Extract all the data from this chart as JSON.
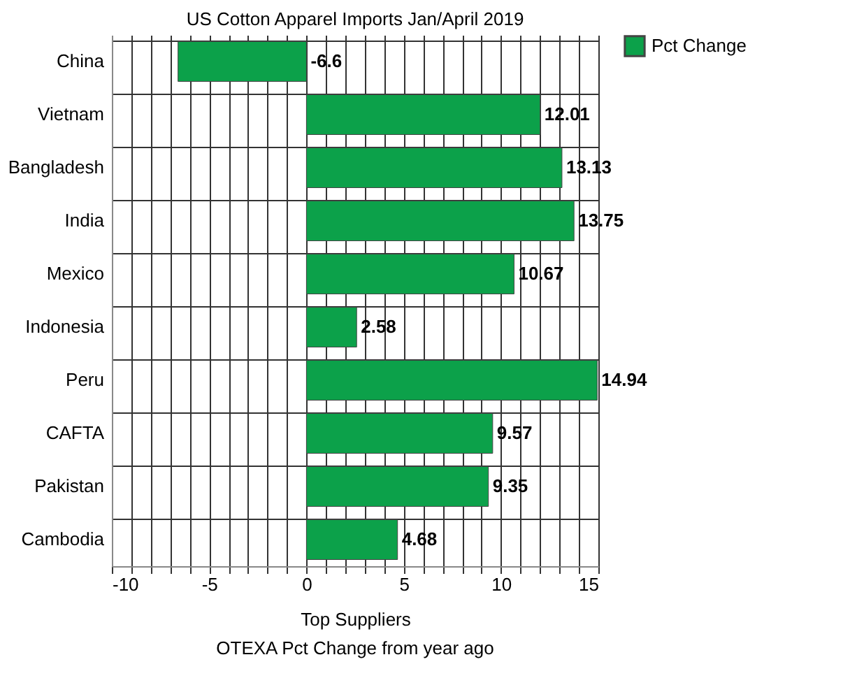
{
  "chart_data": {
    "type": "bar",
    "orientation": "horizontal",
    "title": "US Cotton Apparel Imports Jan/April 2019",
    "xlabel": "Top Suppliers",
    "categories": [
      "China",
      "Vietnam",
      "Bangladesh",
      "India",
      "Mexico",
      "Indonesia",
      "Peru",
      "CAFTA",
      "Pakistan",
      "Cambodia"
    ],
    "series": [
      {
        "name": "Pct Change",
        "color": "#0ca14a",
        "values": [
          -6.6,
          12.01,
          13.13,
          13.75,
          10.67,
          2.58,
          14.94,
          9.57,
          9.35,
          4.68
        ]
      }
    ],
    "data_labels": true,
    "xlim": [
      -10,
      15
    ],
    "xticks": [
      -10,
      {
        "value": -9,
        "label": null
      },
      {
        "value": -8,
        "label": null
      },
      {
        "value": -7,
        "label": null
      },
      {
        "value": -6,
        "label": null
      },
      -5,
      {
        "value": -4,
        "label": null
      },
      {
        "value": -3,
        "label": null
      },
      {
        "value": -2,
        "label": null
      },
      {
        "value": -1,
        "label": null
      },
      0,
      {
        "value": 1,
        "label": null
      },
      {
        "value": 2,
        "label": null
      },
      {
        "value": 3,
        "label": null
      },
      {
        "value": 4,
        "label": null
      },
      5,
      {
        "value": 6,
        "label": null
      },
      {
        "value": 7,
        "label": null
      },
      {
        "value": 8,
        "label": null
      },
      {
        "value": 9,
        "label": null
      },
      10,
      {
        "value": 11,
        "label": null
      },
      {
        "value": 12,
        "label": null
      },
      {
        "value": 13,
        "label": null
      },
      {
        "value": 14,
        "label": null
      },
      15
    ],
    "grid": true,
    "legend": "right",
    "annotations": [
      "OTEXA  Pct Change from year ago"
    ]
  }
}
